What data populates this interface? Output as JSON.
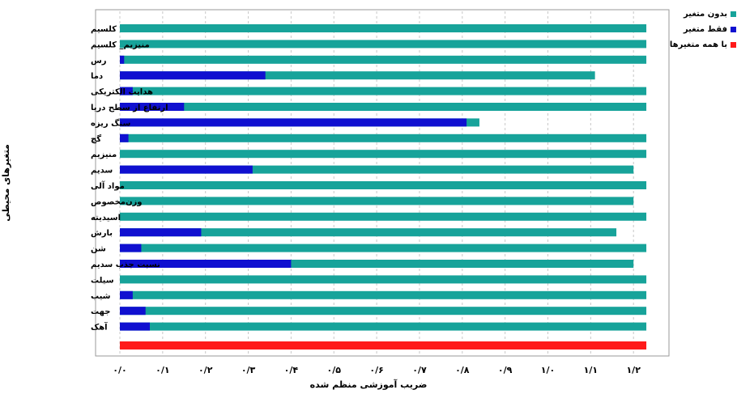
{
  "chart_data": {
    "type": "bar",
    "orientation": "horizontal",
    "xlabel": "ضریب آموزشی منظم شده",
    "ylabel": "متغیرهای محیطی",
    "xlim": [
      0,
      1.3
    ],
    "x_tick_values": [
      0,
      0.1,
      0.2,
      0.3,
      0.4,
      0.5,
      0.6,
      0.7,
      0.8,
      0.9,
      1.0,
      1.1,
      1.2
    ],
    "x_tick_labels": [
      "۰/۰",
      "۰/۱",
      "۰/۲",
      "۰/۳",
      "۰/۴",
      "۰/۵",
      "۰/۶",
      "۰/۷",
      "۰/۸",
      "۰/۹",
      "۱/۰",
      "۱/۱",
      "۱/۲"
    ],
    "grid": true,
    "legend_position": "top-right",
    "categories": [
      "کلسیم",
      "منیزیم_ کلسیم",
      "رس",
      "دما",
      "هدایت الکتریکی",
      "ارتفاع از سطح دریا",
      "سنگ ریزه",
      "گچ",
      "منیزیم",
      "سدیم",
      "مواد آلی",
      "وزن‌مخصوص",
      "اسیدیته",
      "بارش",
      "شن",
      "نسبت جذب سدیم",
      "سیلت",
      "شیب",
      "جهت",
      "آهک"
    ],
    "series": [
      {
        "name": "بدون متغیر",
        "color": "#17a39a",
        "values": [
          1.23,
          1.23,
          1.23,
          1.11,
          1.23,
          1.23,
          0.84,
          1.23,
          1.23,
          1.2,
          1.23,
          1.2,
          1.23,
          1.16,
          1.23,
          1.2,
          1.23,
          1.23,
          1.23,
          1.23
        ]
      },
      {
        "name": "فقط متغیر",
        "color": "#1010d0",
        "values": [
          0,
          0,
          0.01,
          0.34,
          0.03,
          0.15,
          0.81,
          0.02,
          0,
          0.31,
          0,
          0,
          0,
          0.19,
          0.05,
          0.4,
          0,
          0.03,
          0.06,
          0.07
        ]
      },
      {
        "name": "با همه متغیرها",
        "color": "#ff1a1a",
        "value": 1.23
      }
    ]
  }
}
